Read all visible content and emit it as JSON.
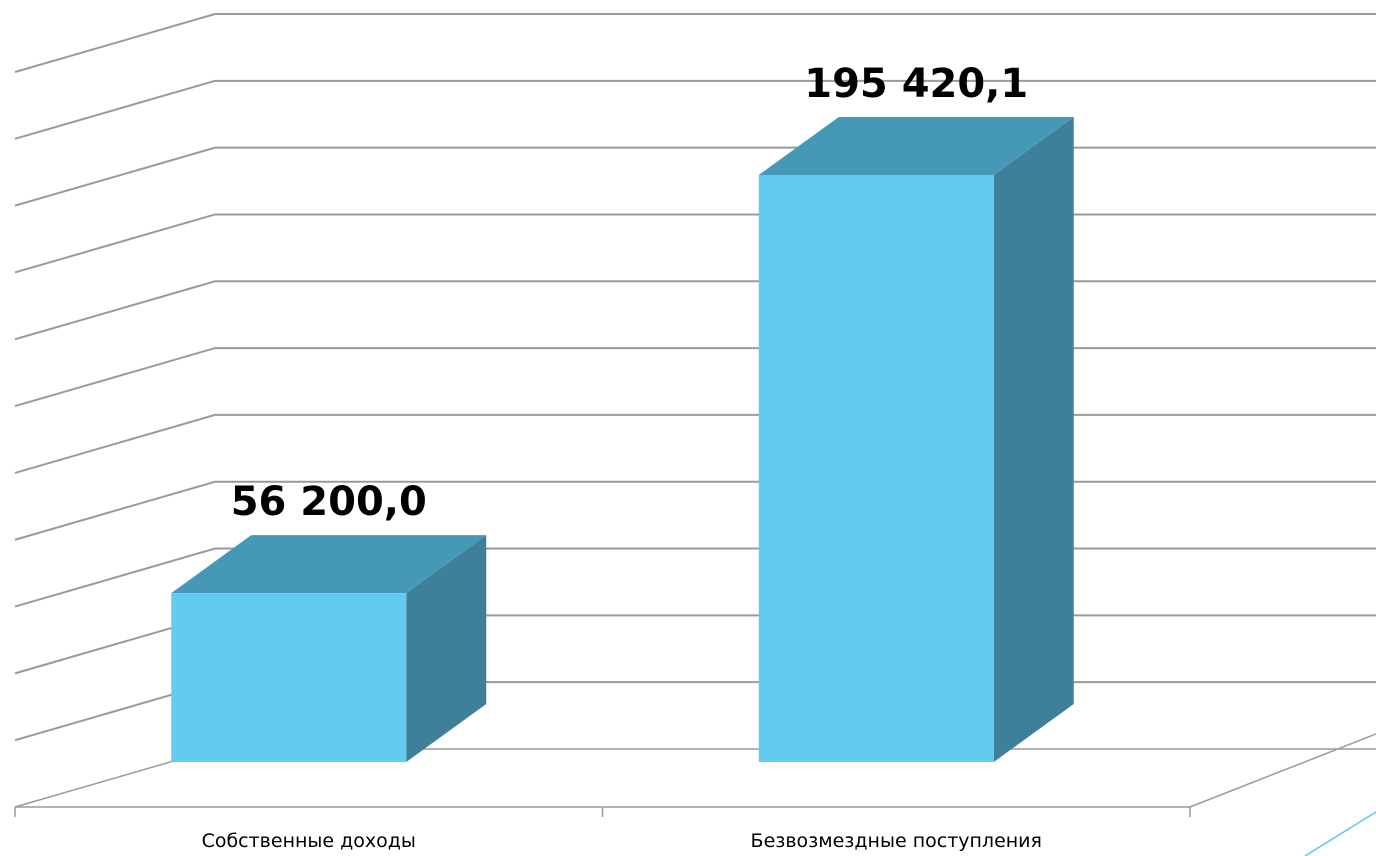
{
  "chart_data": {
    "type": "bar",
    "categories": [
      "Собственные доходы",
      "Безвозмездные поступления"
    ],
    "values": [
      56200.0,
      195420.1
    ],
    "data_labels": [
      "56 200,0",
      "195 420,1"
    ],
    "title": "",
    "xlabel": "",
    "ylabel": "",
    "ylim": [
      0,
      220000
    ],
    "grid": true,
    "three_d": true,
    "colors": {
      "front": "#62CBEF",
      "top": "#4699B6",
      "side": "#3E8099",
      "grid": "#9A9A9A",
      "accent": "#5BC8E8"
    }
  }
}
